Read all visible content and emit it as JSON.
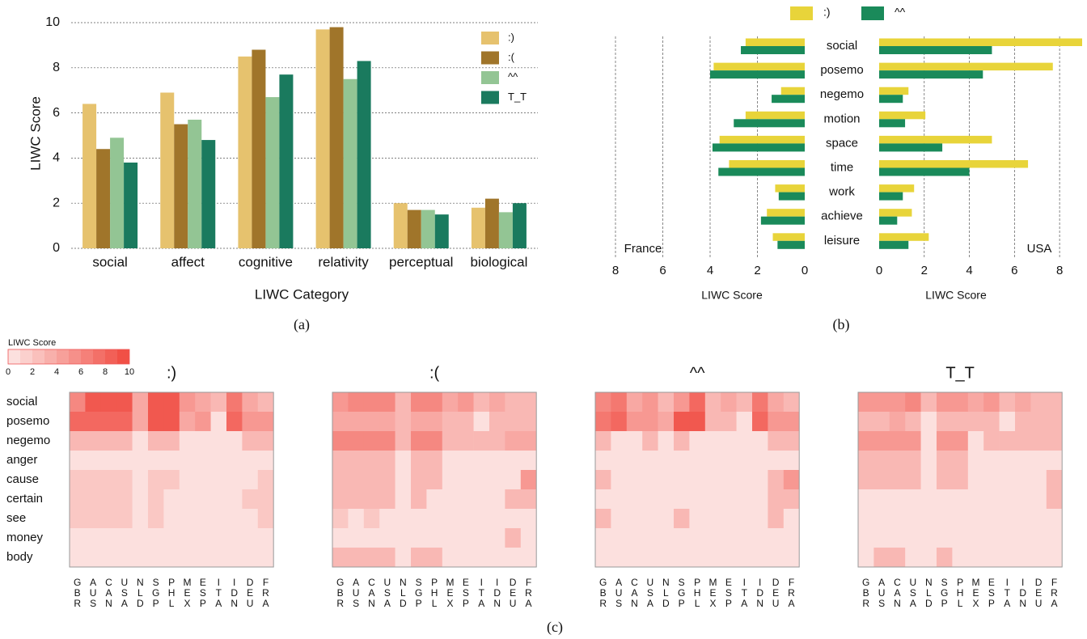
{
  "chart_data": [
    {
      "type": "grouped-bar",
      "categories": [
        "social",
        "affect",
        "cognitive",
        "relativity",
        "perceptual",
        "biological"
      ],
      "series": [
        {
          "name": ":)",
          "color": "#e6c26e",
          "values": [
            6.4,
            6.9,
            8.5,
            9.7,
            2.0,
            1.8
          ]
        },
        {
          "name": ":(",
          "color": "#a0752a",
          "values": [
            4.4,
            5.5,
            8.8,
            9.8,
            1.7,
            2.2
          ]
        },
        {
          "name": "^^",
          "color": "#93c594",
          "values": [
            4.9,
            5.7,
            6.7,
            7.5,
            1.7,
            1.6
          ]
        },
        {
          "name": "T_T",
          "color": "#1a7a5e",
          "values": [
            3.8,
            4.8,
            7.7,
            8.3,
            1.5,
            2.0
          ]
        }
      ],
      "ylim": [
        0,
        10
      ],
      "yticks": [
        0,
        2,
        4,
        6,
        8,
        10
      ],
      "grid": true,
      "xlabel": "LIWC Category",
      "ylabel": "LIWC Score",
      "caption": "(a)"
    },
    {
      "type": "mirrored-bar",
      "categories": [
        "social",
        "posemo",
        "negemo",
        "motion",
        "space",
        "time",
        "work",
        "achieve",
        "leisure"
      ],
      "series": [
        {
          "name": ":)",
          "color": "#e8d43a"
        },
        {
          "name": "^^",
          "color": "#1a8a5a"
        }
      ],
      "panels": [
        {
          "label": "France",
          "xlabel": "LIWC Score",
          "xlim": [
            0,
            8
          ],
          "xticks": [
            8,
            6,
            4,
            2,
            0
          ],
          "values": [
            [
              2.5,
              3.85,
              1.0,
              2.5,
              3.6,
              3.2,
              1.25,
              1.6,
              1.35
            ],
            [
              2.7,
              4.0,
              1.4,
              3.0,
              3.9,
              3.65,
              1.1,
              1.85,
              1.15
            ]
          ]
        },
        {
          "label": "USA",
          "xlabel": "LIWC Score",
          "xlim": [
            0,
            9
          ],
          "xticks": [
            0,
            2,
            4,
            6,
            8
          ],
          "values": [
            [
              9.0,
              7.7,
              1.3,
              2.05,
              5.0,
              6.6,
              1.55,
              1.45,
              2.2
            ],
            [
              5.0,
              4.6,
              1.05,
              1.15,
              2.8,
              4.0,
              1.05,
              0.8,
              1.3
            ]
          ]
        }
      ],
      "grid": true,
      "caption": "(b)"
    },
    {
      "type": "heatmap",
      "rows": [
        "social",
        "posemo",
        "negemo",
        "anger",
        "cause",
        "certain",
        "see",
        "money",
        "body"
      ],
      "columns": [
        "GBR",
        "AUS",
        "CAN",
        "USA",
        "NLD",
        "SGP",
        "PHL",
        "MEX",
        "ESP",
        "ITA",
        "IDN",
        "DEU",
        "FRA"
      ],
      "colorbar": {
        "title": "LIWC Score",
        "lim": [
          0,
          10
        ],
        "ticks": [
          0,
          2,
          4,
          6,
          8,
          10
        ]
      },
      "colors": [
        "#fde8e6",
        "#f0483e"
      ],
      "panels": [
        {
          "title": ":)",
          "values": [
            [
              6,
              9,
              9,
              9,
              4,
              9,
              9,
              5,
              4,
              3,
              7,
              4,
              3
            ],
            [
              8,
              8,
              8,
              8,
              4,
              9,
              9,
              4,
              5,
              0.5,
              8,
              5,
              5
            ],
            [
              3,
              3,
              3,
              3,
              0.5,
              3,
              3,
              0.5,
              0.5,
              0.5,
              0.5,
              3,
              3
            ],
            [
              0.5,
              0.5,
              0.5,
              0.5,
              0.5,
              0.5,
              0.5,
              0.5,
              0.5,
              0.5,
              0.5,
              0.5,
              0.5
            ],
            [
              2,
              2,
              2,
              2,
              0.5,
              2,
              2,
              0.5,
              0.5,
              0.5,
              0.5,
              0.5,
              2
            ],
            [
              2,
              2,
              2,
              2,
              0.5,
              2,
              0.5,
              0.5,
              0.5,
              0.5,
              0.5,
              2,
              2
            ],
            [
              2,
              2,
              2,
              2,
              0.5,
              2,
              0.5,
              0.5,
              0.5,
              0.5,
              0.5,
              0.5,
              2
            ],
            [
              0.5,
              0.5,
              0.5,
              0.5,
              0.5,
              0.5,
              0.5,
              0.5,
              0.5,
              0.5,
              0.5,
              0.5,
              0.5
            ],
            [
              0.5,
              0.5,
              0.5,
              0.5,
              0.5,
              0.5,
              0.5,
              0.5,
              0.5,
              0.5,
              0.5,
              0.5,
              0.5
            ]
          ]
        },
        {
          "title": ":(",
          "values": [
            [
              5,
              6,
              6,
              6,
              3,
              6,
              6,
              4,
              5,
              3,
              4,
              3,
              3
            ],
            [
              4,
              4,
              4,
              4,
              3,
              4,
              4,
              3,
              3,
              0.5,
              3,
              3,
              3
            ],
            [
              6,
              6,
              6,
              6,
              3,
              6,
              6,
              3,
              3,
              3,
              3,
              4,
              4
            ],
            [
              3,
              3,
              3,
              3,
              0.5,
              3,
              3,
              0.5,
              0.5,
              0.5,
              0.5,
              0.5,
              0.5
            ],
            [
              3,
              3,
              3,
              3,
              0.5,
              3,
              3,
              0.5,
              0.5,
              0.5,
              0.5,
              0.5,
              5
            ],
            [
              3,
              3,
              3,
              3,
              0.5,
              3,
              0.5,
              0.5,
              0.5,
              0.5,
              0.5,
              3,
              3
            ],
            [
              2,
              0.5,
              2,
              0.5,
              0.5,
              0.5,
              0.5,
              0.5,
              0.5,
              0.5,
              0.5,
              0.5,
              0.5
            ],
            [
              0.5,
              0.5,
              0.5,
              0.5,
              0.5,
              0.5,
              0.5,
              0.5,
              0.5,
              0.5,
              0.5,
              3,
              0.5
            ],
            [
              3,
              3,
              3,
              3,
              0.5,
              3,
              3,
              0.5,
              0.5,
              0.5,
              0.5,
              0.5,
              0.5
            ]
          ]
        },
        {
          "title": "^^",
          "values": [
            [
              6,
              7,
              4,
              5,
              3,
              5,
              8,
              3,
              4,
              3,
              7,
              4,
              3
            ],
            [
              7,
              8,
              5,
              5,
              4,
              9,
              9,
              3,
              3,
              0.5,
              8,
              5,
              5
            ],
            [
              3,
              0.5,
              0.5,
              3,
              0.5,
              3,
              0.5,
              0.5,
              0.5,
              0.5,
              0.5,
              3,
              3
            ],
            [
              0.5,
              0.5,
              0.5,
              0.5,
              0.5,
              0.5,
              0.5,
              0.5,
              0.5,
              0.5,
              0.5,
              0.5,
              0.5
            ],
            [
              3,
              0.5,
              0.5,
              0.5,
              0.5,
              0.5,
              0.5,
              0.5,
              0.5,
              0.5,
              0.5,
              3,
              5
            ],
            [
              0.5,
              0.5,
              0.5,
              0.5,
              0.5,
              0.5,
              0.5,
              0.5,
              0.5,
              0.5,
              0.5,
              3,
              3
            ],
            [
              3,
              0.5,
              0.5,
              0.5,
              0.5,
              3,
              0.5,
              0.5,
              0.5,
              0.5,
              0.5,
              3,
              0.5
            ],
            [
              0.5,
              0.5,
              0.5,
              0.5,
              0.5,
              0.5,
              0.5,
              0.5,
              0.5,
              0.5,
              0.5,
              0.5,
              0.5
            ],
            [
              0.5,
              0.5,
              0.5,
              0.5,
              0.5,
              0.5,
              0.5,
              0.5,
              0.5,
              0.5,
              0.5,
              0.5,
              0.5
            ]
          ]
        },
        {
          "title": "T_T",
          "values": [
            [
              5,
              5,
              5,
              6,
              3,
              5,
              5,
              4,
              5,
              3,
              4,
              3,
              3
            ],
            [
              3,
              3,
              4,
              3,
              0.5,
              3,
              3,
              3,
              3,
              0.5,
              3,
              3,
              3
            ],
            [
              5,
              5,
              5,
              5,
              0.5,
              5,
              5,
              0.5,
              3,
              3,
              3,
              3,
              3
            ],
            [
              3,
              3,
              3,
              3,
              0.5,
              3,
              3,
              0.5,
              0.5,
              0.5,
              0.5,
              0.5,
              0.5
            ],
            [
              3,
              3,
              3,
              3,
              0.5,
              3,
              3,
              0.5,
              0.5,
              0.5,
              0.5,
              0.5,
              3
            ],
            [
              0.5,
              0.5,
              0.5,
              0.5,
              0.5,
              0.5,
              0.5,
              0.5,
              0.5,
              0.5,
              0.5,
              0.5,
              3
            ],
            [
              0.5,
              0.5,
              0.5,
              0.5,
              0.5,
              0.5,
              0.5,
              0.5,
              0.5,
              0.5,
              0.5,
              0.5,
              0.5
            ],
            [
              0.5,
              0.5,
              0.5,
              0.5,
              0.5,
              0.5,
              0.5,
              0.5,
              0.5,
              0.5,
              0.5,
              0.5,
              0.5
            ],
            [
              0.5,
              3,
              3,
              0.5,
              0.5,
              3,
              0.5,
              0.5,
              0.5,
              0.5,
              0.5,
              0.5,
              0.5
            ]
          ]
        }
      ],
      "caption": "(c)"
    }
  ]
}
